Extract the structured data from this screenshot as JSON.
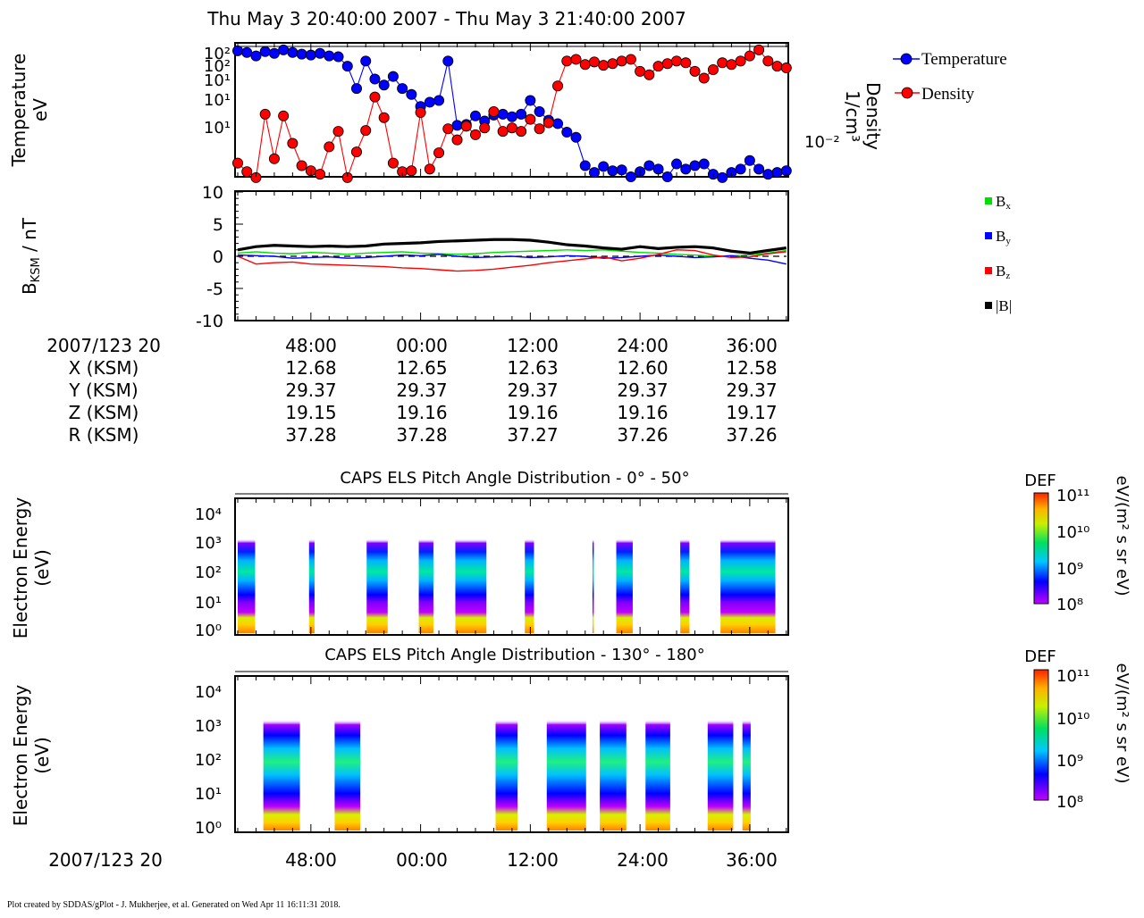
{
  "header": {
    "title": "Thu May 3 20:40:00 2007 - Thu May 3 21:40:00 2007",
    "footer": "Plot created by SDDAS/gPlot - J. Mukherjee, et al.  Generated on Wed Apr 11 16:11:31 2018."
  },
  "colors": {
    "temperature": "#0000ff",
    "density": "#ff0000",
    "bx": "#00dd00",
    "by": "#0000ff",
    "bz": "#ff0000",
    "btot": "#000000"
  },
  "chart_data": [
    {
      "type": "line",
      "ylabel": [
        "Temperature",
        "eV"
      ],
      "y2label": [
        "Density",
        "1/cm³"
      ],
      "log_y": true,
      "y_ticks": [
        "10²",
        "10²",
        "10¹",
        "10¹",
        "10¹"
      ],
      "y2_ticks": [
        "10⁻²"
      ],
      "legend_position": "right",
      "series": [
        {
          "name": "Temperature",
          "color": "#0000ff",
          "x_minutes": [
            0,
            1,
            2,
            3,
            4,
            5,
            6,
            7,
            8,
            9,
            10,
            11,
            12,
            13,
            14,
            15,
            16,
            17,
            18,
            19,
            20,
            21,
            22,
            23,
            24,
            25,
            26,
            27,
            28,
            29,
            30,
            31,
            32,
            33,
            34,
            35,
            36,
            37,
            38,
            39,
            40,
            41,
            42,
            43,
            44,
            45,
            46,
            47,
            48,
            49,
            50,
            51,
            52,
            53,
            54,
            55,
            56,
            57,
            58,
            59,
            60
          ],
          "level": [
            0.96,
            0.94,
            0.9,
            0.95,
            0.93,
            0.97,
            0.94,
            0.92,
            0.91,
            0.93,
            0.9,
            0.89,
            0.78,
            0.52,
            0.84,
            0.63,
            0.56,
            0.66,
            0.52,
            0.45,
            0.31,
            0.36,
            0.38,
            0.84,
            0.09,
            0.1,
            0.2,
            0.14,
            0.21,
            0.22,
            0.19,
            0.22,
            0.38,
            0.25,
            0.15,
            0.11,
            0.01,
            -0.05,
            -0.38,
            -0.46,
            -0.39,
            -0.44,
            -0.43,
            -0.51,
            -0.45,
            -0.38,
            -0.42,
            -0.51,
            -0.36,
            -0.42,
            -0.38,
            -0.36,
            -0.48,
            -0.52,
            -0.46,
            -0.42,
            -0.32,
            -0.42,
            -0.48,
            -0.46,
            -0.44
          ]
        },
        {
          "name": "Density",
          "color": "#ff0000",
          "x_minutes": [
            0,
            1,
            2,
            3,
            4,
            5,
            6,
            7,
            8,
            9,
            10,
            11,
            12,
            13,
            14,
            15,
            16,
            17,
            18,
            19,
            20,
            21,
            22,
            23,
            24,
            25,
            26,
            27,
            28,
            29,
            30,
            31,
            32,
            33,
            34,
            35,
            36,
            37,
            38,
            39,
            40,
            41,
            42,
            43,
            44,
            45,
            46,
            47,
            48,
            49,
            50,
            51,
            52,
            53,
            54,
            55,
            56,
            57,
            58,
            59,
            60
          ],
          "level": [
            -0.35,
            -0.45,
            -0.52,
            0.22,
            -0.3,
            0.2,
            -0.12,
            -0.38,
            -0.44,
            -0.48,
            -0.16,
            0.02,
            -0.52,
            -0.22,
            0.03,
            0.42,
            0.18,
            -0.35,
            -0.45,
            -0.44,
            0.24,
            -0.42,
            -0.23,
            0.05,
            -0.08,
            0.08,
            -0.02,
            0.06,
            0.25,
            0.02,
            0.06,
            0.02,
            0.16,
            0.05,
            0.12,
            0.55,
            0.84,
            0.86,
            0.8,
            0.83,
            0.79,
            0.81,
            0.84,
            0.86,
            0.72,
            0.68,
            0.78,
            0.81,
            0.84,
            0.82,
            0.72,
            0.64,
            0.74,
            0.82,
            0.8,
            0.84,
            0.9,
            0.97,
            0.84,
            0.78,
            0.76
          ]
        }
      ]
    },
    {
      "type": "line",
      "ylabel": "B_KSM / nT",
      "y_range": [
        -10,
        10
      ],
      "y_ticks": [
        "10",
        "5",
        "0",
        "-5",
        "-10"
      ],
      "legend_position": "right",
      "x_minutes": [
        0,
        2,
        4,
        6,
        8,
        10,
        12,
        14,
        16,
        18,
        20,
        22,
        24,
        26,
        28,
        30,
        32,
        34,
        36,
        38,
        40,
        42,
        44,
        46,
        48,
        50,
        52,
        54,
        56,
        58,
        60
      ],
      "series": [
        {
          "name": "Bx",
          "color": "#00dd00",
          "values": [
            0.5,
            0.7,
            0.5,
            0.4,
            0.6,
            0.5,
            0.3,
            0.5,
            0.6,
            0.7,
            0.5,
            0.4,
            0.3,
            0.4,
            0.6,
            0.7,
            0.8,
            0.9,
            1.0,
            0.9,
            1.0,
            0.8,
            0.6,
            0.5,
            0.3,
            0.2,
            0.0,
            0.1,
            0.2,
            0.5,
            0.9
          ]
        },
        {
          "name": "By",
          "color": "#0000ff",
          "values": [
            0.2,
            0.1,
            0.0,
            -0.3,
            -0.2,
            -0.1,
            -0.3,
            -0.2,
            0.0,
            0.2,
            0.1,
            0.3,
            0.0,
            -0.2,
            -0.1,
            0.0,
            -0.2,
            -0.1,
            0.1,
            0.0,
            -0.3,
            -0.2,
            0.0,
            0.2,
            0.0,
            -0.2,
            -0.1,
            0.1,
            -0.3,
            -0.6,
            -1.2
          ]
        },
        {
          "name": "Bz",
          "color": "#ff0000",
          "values": [
            0.0,
            -1.2,
            -1.0,
            -0.9,
            -1.2,
            -1.3,
            -1.4,
            -1.5,
            -1.6,
            -1.8,
            -1.9,
            -2.1,
            -2.3,
            -2.2,
            -2.0,
            -1.7,
            -1.4,
            -1.0,
            -0.7,
            -0.4,
            -0.1,
            -0.7,
            -0.3,
            0.3,
            1.0,
            0.9,
            0.2,
            -0.2,
            -0.1,
            0.4,
            0.7
          ]
        },
        {
          "name": "|B|",
          "color": "#000000",
          "values": [
            1.0,
            1.5,
            1.7,
            1.6,
            1.5,
            1.6,
            1.5,
            1.6,
            1.9,
            2.0,
            2.1,
            2.3,
            2.4,
            2.5,
            2.6,
            2.6,
            2.5,
            2.2,
            1.8,
            1.6,
            1.3,
            1.1,
            1.5,
            1.2,
            1.4,
            1.5,
            1.3,
            0.8,
            0.5,
            0.9,
            1.3
          ]
        }
      ]
    },
    {
      "type": "heatmap",
      "title": "CAPS ELS Pitch Angle Distribution - 0° - 50°",
      "ylabel": [
        "Electron Energy",
        "(eV)"
      ],
      "y_ticks": [
        "10⁴",
        "10³",
        "10²",
        "10¹",
        "10⁰"
      ],
      "log_y": true,
      "colorbar": {
        "label": "DEF",
        "units": "eV/(m² s sr eV)",
        "ticks": [
          "10¹¹",
          "10¹⁰",
          "10⁹",
          "10⁸"
        ]
      },
      "blocks_minutes": [
        [
          0,
          1.9
        ],
        [
          7.8,
          8.4
        ],
        [
          14.1,
          16.4
        ],
        [
          19.8,
          21.4
        ],
        [
          23.8,
          27.2
        ],
        [
          31.4,
          32.4
        ],
        [
          38.8,
          38.9
        ],
        [
          41.4,
          43.2
        ],
        [
          48.4,
          49.4
        ],
        [
          52.8,
          58.8
        ]
      ]
    },
    {
      "type": "heatmap",
      "title": "CAPS ELS Pitch Angle Distribution - 130° - 180°",
      "ylabel": [
        "Electron Energy",
        "(eV)"
      ],
      "y_ticks": [
        "10⁴",
        "10³",
        "10²",
        "10¹",
        "10⁰"
      ],
      "log_y": true,
      "colorbar": {
        "label": "DEF",
        "units": "eV/(m² s sr eV)",
        "ticks": [
          "10¹¹",
          "10¹⁰",
          "10⁹",
          "10⁸"
        ]
      },
      "blocks_minutes": [
        [
          2.8,
          6.8
        ],
        [
          10.6,
          13.4
        ],
        [
          28.2,
          30.6
        ],
        [
          33.8,
          38.1
        ],
        [
          39.6,
          42.5
        ],
        [
          44.6,
          47.3
        ],
        [
          51.4,
          54.2
        ],
        [
          55.2,
          56.1
        ]
      ]
    }
  ],
  "time_axis": {
    "start_label": "2007/123 20",
    "tick_labels": [
      "48:00",
      "00:00",
      "12:00",
      "24:00",
      "36:00"
    ]
  },
  "ephemeris": {
    "rows": [
      {
        "label": "X (KSM)",
        "values": [
          "12.68",
          "12.65",
          "12.63",
          "12.60",
          "12.58"
        ]
      },
      {
        "label": "Y (KSM)",
        "values": [
          "29.37",
          "29.37",
          "29.37",
          "29.37",
          "29.37"
        ]
      },
      {
        "label": "Z (KSM)",
        "values": [
          "19.15",
          "19.16",
          "19.16",
          "19.16",
          "19.17"
        ]
      },
      {
        "label": "R (KSM)",
        "values": [
          "37.28",
          "37.28",
          "37.27",
          "37.26",
          "37.26"
        ]
      }
    ]
  }
}
